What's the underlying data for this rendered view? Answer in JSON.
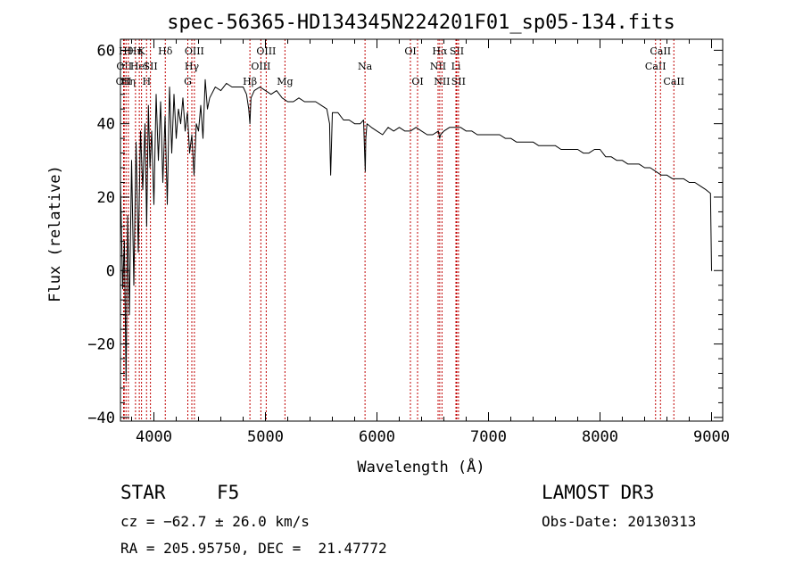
{
  "chart_data": {
    "type": "line",
    "title": "spec-56365-HD134345N224201F01_sp05-134.fits",
    "xlabel": "Wavelength (Å)",
    "ylabel": "Flux (relative)",
    "xlim": [
      3700,
      9100
    ],
    "ylim": [
      -41,
      63
    ],
    "xticks": [
      4000,
      5000,
      6000,
      7000,
      8000,
      9000
    ],
    "yticks": [
      -40,
      -20,
      0,
      20,
      40,
      60
    ],
    "xtick_labels": [
      "4000",
      "5000",
      "6000",
      "7000",
      "8000",
      "9000"
    ],
    "ytick_labels": [
      "−40",
      "−20",
      "0",
      "20",
      "40",
      "60"
    ],
    "series": [
      {
        "name": "spectrum",
        "x": [
          3700,
          3720,
          3735,
          3750,
          3765,
          3780,
          3800,
          3820,
          3840,
          3860,
          3880,
          3900,
          3920,
          3935,
          3950,
          3965,
          3980,
          4000,
          4020,
          4040,
          4060,
          4080,
          4100,
          4120,
          4140,
          4160,
          4180,
          4200,
          4220,
          4240,
          4260,
          4280,
          4300,
          4320,
          4340,
          4360,
          4380,
          4400,
          4420,
          4440,
          4460,
          4480,
          4500,
          4550,
          4600,
          4650,
          4700,
          4750,
          4800,
          4830,
          4850,
          4861,
          4870,
          4900,
          4950,
          5000,
          5050,
          5100,
          5150,
          5200,
          5250,
          5300,
          5350,
          5400,
          5450,
          5500,
          5550,
          5575,
          5580,
          5585,
          5600,
          5650,
          5700,
          5750,
          5800,
          5850,
          5880,
          5890,
          5895,
          5900,
          5910,
          5950,
          6000,
          6050,
          6100,
          6150,
          6200,
          6250,
          6300,
          6350,
          6400,
          6450,
          6500,
          6550,
          6562,
          6570,
          6600,
          6650,
          6700,
          6750,
          6800,
          6850,
          6900,
          6950,
          7000,
          7050,
          7100,
          7150,
          7200,
          7250,
          7300,
          7350,
          7400,
          7450,
          7500,
          7550,
          7600,
          7650,
          7700,
          7750,
          7800,
          7850,
          7900,
          7950,
          8000,
          8050,
          8100,
          8150,
          8200,
          8250,
          8300,
          8350,
          8400,
          8450,
          8500,
          8550,
          8600,
          8650,
          8700,
          8750,
          8800,
          8850,
          8900,
          8950,
          8990,
          9000,
          9005
        ],
        "values": [
          24,
          -5,
          8,
          -30,
          15,
          -12,
          30,
          -4,
          35,
          5,
          38,
          22,
          40,
          12,
          45,
          28,
          38,
          18,
          48,
          30,
          46,
          24,
          42,
          18,
          50,
          32,
          48,
          36,
          44,
          40,
          47,
          38,
          43,
          32,
          37,
          26,
          40,
          38,
          45,
          36,
          52,
          44,
          47,
          50,
          49,
          51,
          50,
          50,
          50,
          48,
          44,
          40,
          47,
          49,
          50,
          49,
          48,
          49,
          47,
          46,
          46,
          47,
          46,
          46,
          46,
          45,
          44,
          40,
          32,
          26,
          43,
          43,
          41,
          41,
          40,
          40,
          41,
          31,
          27,
          36,
          40,
          39,
          38,
          37,
          39,
          38,
          39,
          38,
          38,
          39,
          38,
          37,
          37,
          38,
          36,
          37,
          38,
          39,
          39,
          39,
          38,
          38,
          37,
          37,
          37,
          37,
          37,
          36,
          36,
          35,
          35,
          35,
          35,
          34,
          34,
          34,
          34,
          33,
          33,
          33,
          33,
          32,
          32,
          33,
          33,
          31,
          31,
          30,
          30,
          29,
          29,
          29,
          28,
          28,
          27,
          26,
          26,
          25,
          25,
          25,
          24,
          24,
          23,
          22,
          21,
          0,
          0
        ]
      }
    ],
    "line_markers": [
      {
        "w": 3728,
        "label": "OII",
        "row": 3
      },
      {
        "w": 3734,
        "label": "OII",
        "row": 2
      },
      {
        "w": 3750,
        "label": "Hθ",
        "row": 1
      },
      {
        "w": 3771,
        "label": "Hη",
        "row": 3
      },
      {
        "w": 3835,
        "label": "Hη",
        "row": 1
      },
      {
        "w": 3869,
        "label": "HeI",
        "row": 2
      },
      {
        "w": 3889,
        "label": "K",
        "row": 1
      },
      {
        "w": 3934,
        "label": "H",
        "row": 3
      },
      {
        "w": 3969,
        "label": "SII",
        "row": 2
      },
      {
        "w": 4102,
        "label": "Hδ",
        "row": 1
      },
      {
        "w": 4304,
        "label": "G",
        "row": 3
      },
      {
        "w": 4340,
        "label": "Hγ",
        "row": 2
      },
      {
        "w": 4363,
        "label": "OIII",
        "row": 1
      },
      {
        "w": 4861,
        "label": "Hβ",
        "row": 3
      },
      {
        "w": 4959,
        "label": "OIII",
        "row": 2
      },
      {
        "w": 5007,
        "label": "OIII",
        "row": 1
      },
      {
        "w": 5175,
        "label": "Mg",
        "row": 3
      },
      {
        "w": 5893,
        "label": "Na",
        "row": 2
      },
      {
        "w": 6300,
        "label": "OI",
        "row": 1
      },
      {
        "w": 6364,
        "label": "OI",
        "row": 3
      },
      {
        "w": 6548,
        "label": "NII",
        "row": 2
      },
      {
        "w": 6563,
        "label": "Hα",
        "row": 1
      },
      {
        "w": 6583,
        "label": "NII",
        "row": 3
      },
      {
        "w": 6708,
        "label": "Li",
        "row": 2
      },
      {
        "w": 6716,
        "label": "SII",
        "row": 1
      },
      {
        "w": 6731,
        "label": "SII",
        "row": 3
      },
      {
        "w": 8498,
        "label": "CaII",
        "row": 2
      },
      {
        "w": 8542,
        "label": "CaII",
        "row": 1
      },
      {
        "w": 8662,
        "label": "CaII",
        "row": 3
      }
    ]
  },
  "info": {
    "object_class": "STAR",
    "subclass": "F5",
    "survey": "LAMOST DR3",
    "cz": "cz = −62.7 ± 26.0 km/s",
    "obs_date": "Obs-Date: 20130313",
    "coords": "RA = 205.95750, DEC =  21.47772"
  }
}
